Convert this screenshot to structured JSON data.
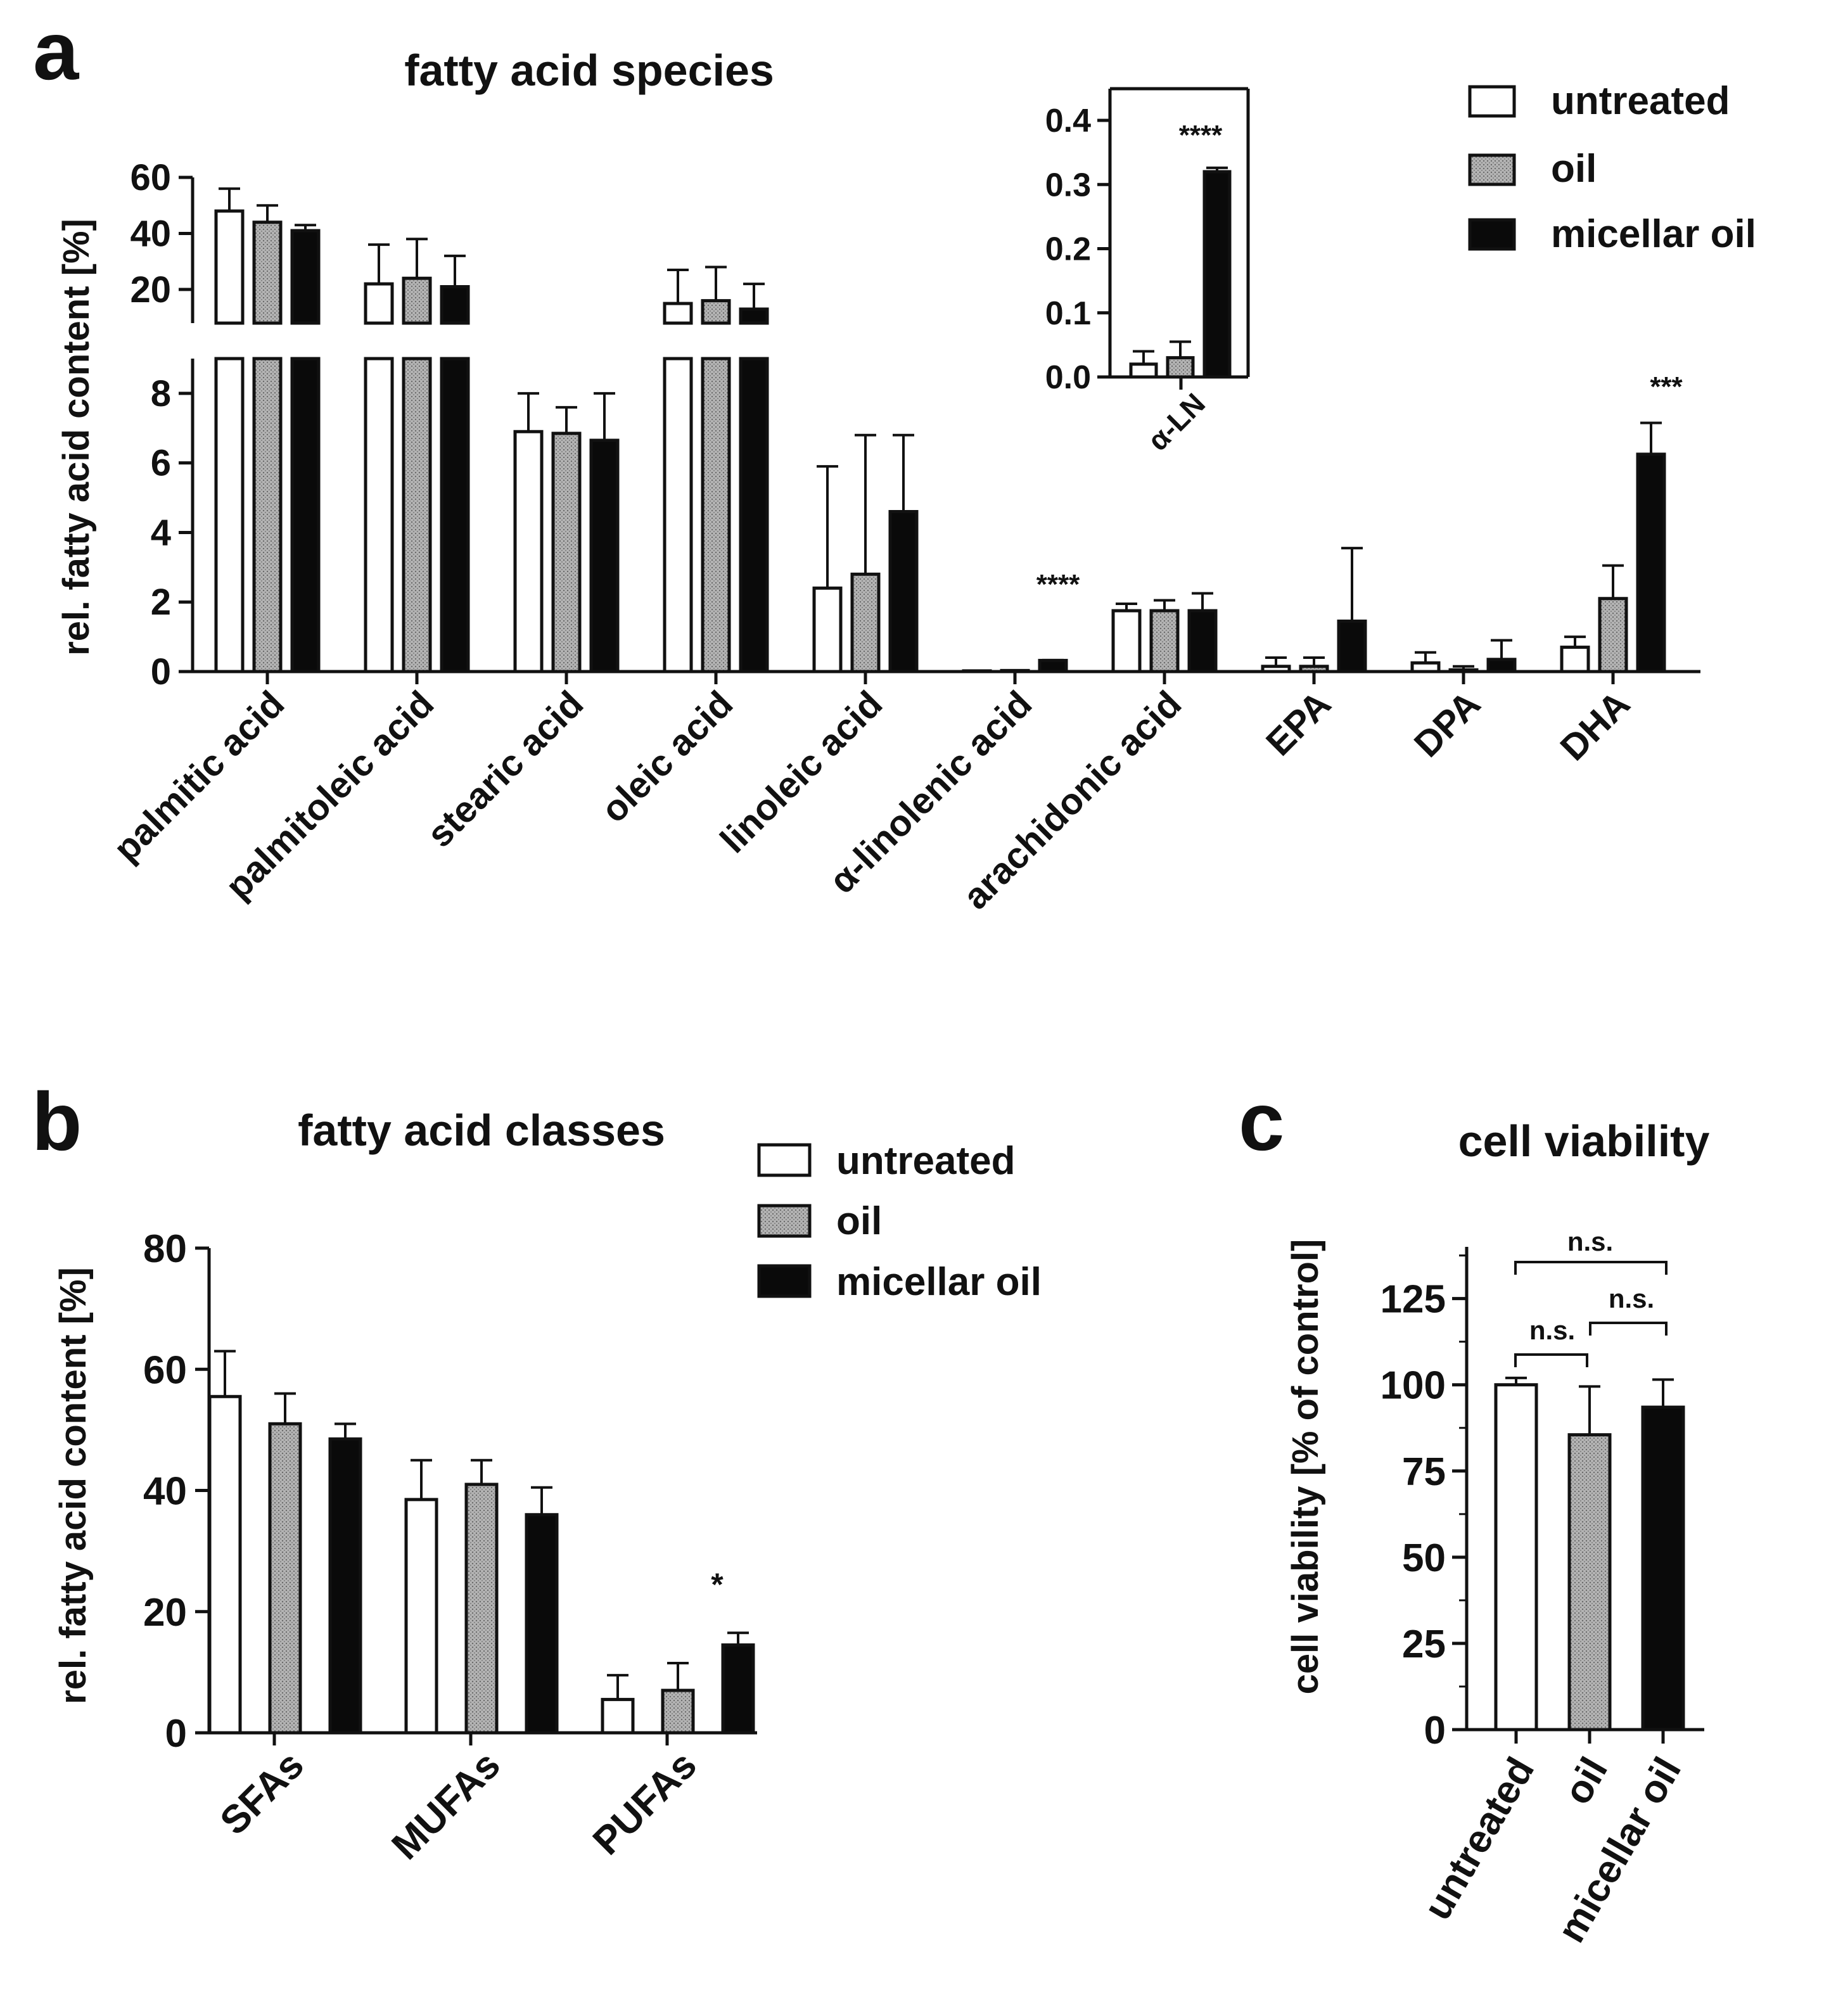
{
  "colors": {
    "untreated": "#ffffff",
    "oil": "#a8a8a8",
    "micellar": "#0a0a0a",
    "stroke": "#111111"
  },
  "legend": [
    "untreated",
    "oil",
    "micellar oil"
  ],
  "panel_a": {
    "letter": "a",
    "title": "fatty acid species",
    "ylabel": "rel. fatty acid content [%]",
    "inset_category": "α-LN",
    "inset_star": "****"
  },
  "panel_b": {
    "letter": "b",
    "title": "fatty acid classes",
    "ylabel": "rel. fatty acid content [%]"
  },
  "panel_c": {
    "letter": "c",
    "title": "cell viability",
    "ylabel": "cell viability [% of control]"
  },
  "chart_data": [
    {
      "panel": "a",
      "type": "bar",
      "title": "fatty acid species",
      "ylabel": "rel. fatty acid content [%]",
      "axis_break": {
        "lower_ylim": [
          0,
          9
        ],
        "lower_ticks": [
          0,
          2,
          4,
          6,
          8
        ],
        "upper_ylim": [
          8,
          60
        ],
        "upper_ticks": [
          20,
          40,
          60
        ]
      },
      "categories": [
        "palmitic acid",
        "palmitoleic acid",
        "stearic acid",
        "oleic acid",
        "linoleic acid",
        "α-linolenic acid",
        "arachidonic acid",
        "EPA",
        "DPA",
        "DHA"
      ],
      "series": [
        {
          "name": "untreated",
          "values": [
            48,
            22,
            6.9,
            15,
            2.4,
            0.02,
            1.75,
            0.15,
            0.25,
            0.7
          ],
          "errors": [
            8,
            14,
            1.1,
            12,
            3.5,
            0.02,
            0.2,
            0.25,
            0.3,
            0.3
          ]
        },
        {
          "name": "oil",
          "values": [
            44,
            24,
            6.85,
            16,
            2.8,
            0.03,
            1.75,
            0.15,
            0.05,
            2.1
          ],
          "errors": [
            6,
            14,
            0.75,
            12,
            4.0,
            0.03,
            0.3,
            0.25,
            0.1,
            0.95
          ]
        },
        {
          "name": "micellar oil",
          "values": [
            41,
            21,
            6.65,
            13,
            4.6,
            0.32,
            1.75,
            1.45,
            0.35,
            6.25
          ],
          "errors": [
            2,
            11,
            1.35,
            9,
            2.2,
            0.01,
            0.5,
            2.1,
            0.55,
            0.9
          ]
        }
      ],
      "annotations": [
        {
          "category": "α-linolenic acid",
          "text": "****"
        },
        {
          "category": "DHA",
          "text": "***"
        }
      ],
      "inset": {
        "category": "α-LN",
        "ylim": [
          0,
          0.4
        ],
        "ticks": [
          "0.0",
          "0.1",
          "0.2",
          "0.3",
          "0.4"
        ],
        "values": [
          0.02,
          0.03,
          0.32
        ],
        "errors": [
          0.02,
          0.025,
          0.006
        ],
        "annotation": "****"
      }
    },
    {
      "panel": "b",
      "type": "bar",
      "title": "fatty acid classes",
      "ylabel": "rel. fatty acid content [%]",
      "ylim": [
        0,
        80
      ],
      "ticks": [
        0,
        20,
        40,
        60,
        80
      ],
      "categories": [
        "SFAs",
        "MUFAs",
        "PUFAs"
      ],
      "series": [
        {
          "name": "untreated",
          "values": [
            55.5,
            38.5,
            5.5
          ],
          "errors": [
            7.5,
            6.5,
            4
          ]
        },
        {
          "name": "oil",
          "values": [
            51,
            41,
            7
          ],
          "errors": [
            5,
            4,
            4.5
          ]
        },
        {
          "name": "micellar oil",
          "values": [
            48.5,
            36,
            14.5
          ],
          "errors": [
            2.5,
            4.5,
            2
          ]
        }
      ],
      "annotations": [
        {
          "category": "PUFAs",
          "text": "*"
        }
      ]
    },
    {
      "panel": "c",
      "type": "bar",
      "title": "cell viability",
      "ylabel": "cell viability [% of control]",
      "ylim": [
        0,
        140
      ],
      "ticks": [
        0,
        25,
        50,
        75,
        100,
        125
      ],
      "categories": [
        "untreated",
        "oil",
        "micellar oil"
      ],
      "values": [
        100,
        85.5,
        93.5
      ],
      "errors": [
        2,
        14,
        8
      ],
      "comparisons": [
        {
          "pair": [
            "untreated",
            "micellar oil"
          ],
          "text": "n.s."
        },
        {
          "pair": [
            "oil",
            "micellar oil"
          ],
          "text": "n.s."
        },
        {
          "pair": [
            "untreated",
            "oil"
          ],
          "text": "n.s."
        }
      ]
    }
  ]
}
